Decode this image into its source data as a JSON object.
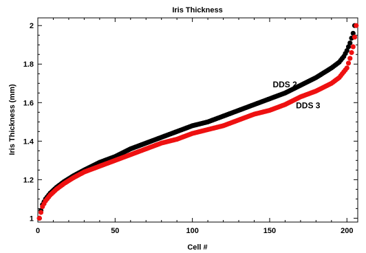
{
  "chart_data": {
    "type": "scatter",
    "title": "Iris Thickness",
    "xlabel": "Cell #",
    "ylabel": "Iris Thickness (mm)",
    "xlim": [
      0,
      207
    ],
    "ylim": [
      0.98,
      2.04
    ],
    "xticks": [
      0,
      50,
      100,
      150,
      200
    ],
    "xtick_labels": [
      "0",
      "50",
      "100",
      "150",
      "200"
    ],
    "yticks": [
      1.0,
      1.2,
      1.4,
      1.6,
      1.8,
      2.0
    ],
    "ytick_labels": [
      "1",
      "1.2",
      "1.4",
      "1.6",
      "1.8",
      "2"
    ],
    "grid": false,
    "series": [
      {
        "name": "DDS 2",
        "color": "#000000",
        "x": [
          1,
          2,
          3,
          5,
          8,
          12,
          17,
          23,
          30,
          40,
          50,
          60,
          70,
          80,
          90,
          100,
          110,
          120,
          130,
          140,
          150,
          160,
          170,
          180,
          190,
          195,
          198,
          200,
          202,
          204,
          205
        ],
        "values": [
          1.0,
          1.04,
          1.07,
          1.1,
          1.13,
          1.16,
          1.19,
          1.22,
          1.25,
          1.29,
          1.32,
          1.36,
          1.39,
          1.42,
          1.45,
          1.48,
          1.5,
          1.53,
          1.56,
          1.59,
          1.62,
          1.65,
          1.69,
          1.73,
          1.78,
          1.81,
          1.84,
          1.87,
          1.91,
          1.96,
          2.0
        ]
      },
      {
        "name": "DDS 3",
        "color": "#ee1111",
        "x": [
          1,
          2,
          3,
          5,
          8,
          12,
          17,
          23,
          30,
          40,
          50,
          60,
          70,
          80,
          90,
          100,
          110,
          120,
          130,
          140,
          150,
          160,
          170,
          180,
          190,
          195,
          198,
          200,
          202,
          204,
          205,
          206
        ],
        "values": [
          1.0,
          1.03,
          1.06,
          1.09,
          1.12,
          1.15,
          1.18,
          1.21,
          1.24,
          1.27,
          1.3,
          1.33,
          1.36,
          1.39,
          1.41,
          1.44,
          1.46,
          1.48,
          1.51,
          1.54,
          1.56,
          1.59,
          1.63,
          1.66,
          1.7,
          1.73,
          1.76,
          1.78,
          1.83,
          1.89,
          1.94,
          2.0
        ]
      }
    ],
    "annotations": [
      {
        "text": "DDS 2",
        "x": 152,
        "y": 1.68
      },
      {
        "text": "DDS 3",
        "x": 167,
        "y": 1.57
      }
    ]
  }
}
